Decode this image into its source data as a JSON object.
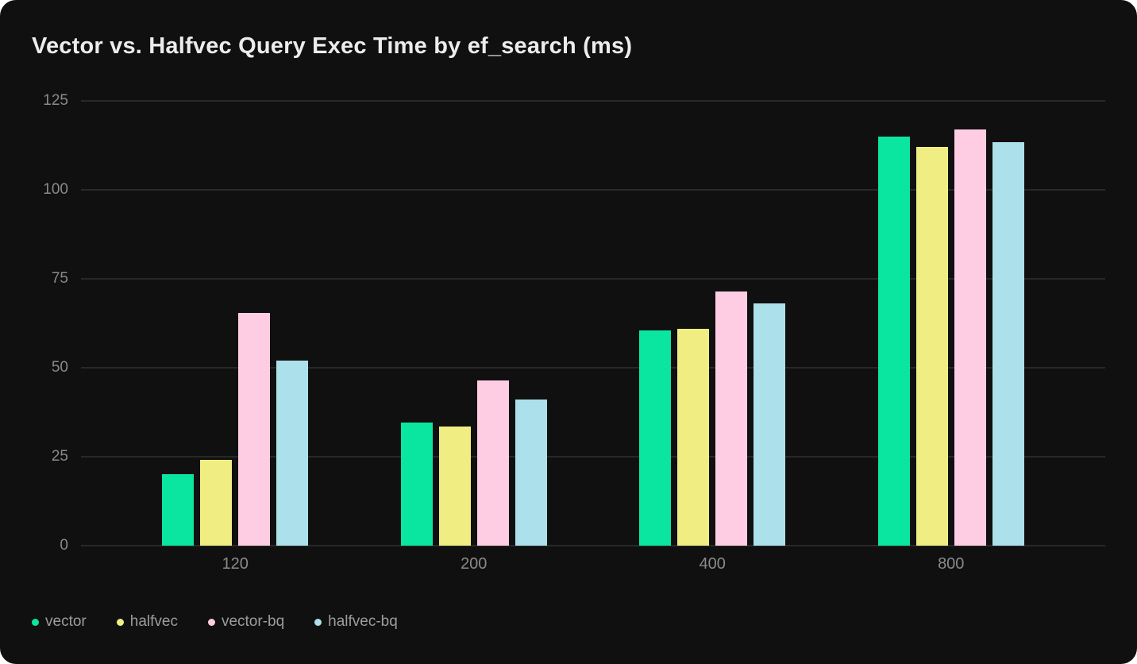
{
  "chart_data": {
    "type": "bar",
    "title": "Vector vs. Halfvec Query Exec Time by ef_search (ms)",
    "xlabel": "",
    "ylabel": "",
    "categories": [
      "120",
      "200",
      "400",
      "800"
    ],
    "series": [
      {
        "name": "vector",
        "color": "#0ae6a0",
        "values": [
          20,
          34.5,
          60.5,
          115
        ]
      },
      {
        "name": "halfvec",
        "color": "#f0ee82",
        "values": [
          24,
          33.5,
          61,
          112
        ]
      },
      {
        "name": "vector-bq",
        "color": "#ffcde3",
        "values": [
          65.5,
          46.5,
          71.5,
          117
        ]
      },
      {
        "name": "halfvec-bq",
        "color": "#ace0ea",
        "values": [
          52,
          41,
          68,
          113.5
        ]
      }
    ],
    "y_ticks": [
      0,
      25,
      50,
      75,
      100,
      125
    ],
    "ylim": [
      0,
      125
    ],
    "grid": true,
    "legend_position": "bottom-left"
  },
  "style": {
    "page_bg": "#ffffff",
    "card_bg": "#101010",
    "grid_color": "#282828",
    "title_color": "#ececec",
    "axis_label_color": "#8a8a8a",
    "legend_label_color": "#9c9c9c"
  }
}
